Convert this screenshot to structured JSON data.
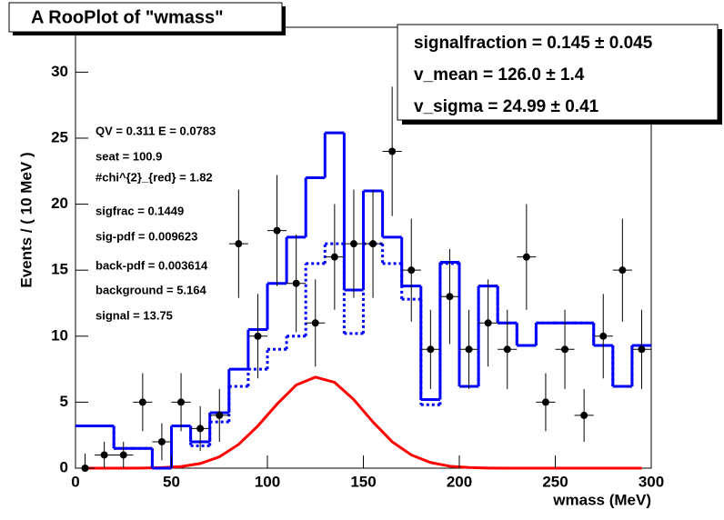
{
  "chart_data": {
    "type": "line",
    "title": "A RooPlot of \"wmass\"",
    "x_label": "wmass (MeV)",
    "y_label": "Events / ( 10 MeV )",
    "xlim": [
      0,
      300
    ],
    "xticks": [
      0,
      50,
      100,
      150,
      200,
      250,
      300
    ],
    "ylim": [
      0,
      33.4
    ],
    "yticks": [
      0,
      5,
      10,
      15,
      20,
      25,
      30
    ],
    "x": [
      5,
      15,
      25,
      35,
      45,
      55,
      65,
      75,
      85,
      95,
      105,
      115,
      125,
      135,
      145,
      155,
      165,
      175,
      185,
      195,
      205,
      215,
      225,
      235,
      245,
      255,
      265,
      275,
      285,
      295
    ],
    "series": [
      {
        "style": "points",
        "color": "#000000",
        "values": [
          0,
          1,
          1,
          5,
          2,
          5,
          3,
          4,
          17,
          10,
          18,
          14,
          11,
          16,
          17,
          17,
          24,
          15,
          9,
          13,
          9,
          11,
          9,
          16,
          5,
          9,
          4,
          10,
          15,
          9
        ],
        "errors": [
          1.1,
          1,
          1,
          2.2,
          1.4,
          2.2,
          1.7,
          2,
          4.1,
          3.2,
          4.2,
          3.7,
          3.3,
          4,
          4.1,
          4.1,
          4.9,
          3.9,
          3,
          3.6,
          3,
          3.3,
          3,
          4,
          2.2,
          3,
          2,
          3.2,
          3.9,
          3
        ]
      },
      {
        "style": "step",
        "color": "#0000ff",
        "values": [
          3.2,
          3.2,
          1.5,
          1.5,
          0,
          3.2,
          2,
          4.2,
          7.5,
          10.5,
          14,
          17.5,
          22,
          25.4,
          13.5,
          21,
          17.5,
          13.8,
          5.2,
          15.6,
          6.2,
          13.8,
          11,
          9.3,
          11,
          11,
          11,
          9.3,
          6.2,
          9.3
        ]
      },
      {
        "style": "dotted-step",
        "color": "#0000ff",
        "values": [
          3.2,
          3.2,
          1.5,
          1.5,
          0,
          3.2,
          1.7,
          3.5,
          6.2,
          7.5,
          9,
          10,
          15.5,
          17,
          10.2,
          17,
          15.5,
          12.8,
          4.8,
          15.5,
          6.2,
          13.8,
          11,
          9.3,
          11,
          11,
          11,
          9.3,
          6.2,
          9.3
        ]
      },
      {
        "style": "curve",
        "color": "#ff0000",
        "values": [
          0,
          0,
          0,
          0.01,
          0.04,
          0.12,
          0.35,
          0.86,
          1.8,
          3.2,
          4.85,
          6.3,
          6.9,
          6.5,
          5.2,
          3.5,
          2,
          1,
          0.43,
          0.15,
          0.05,
          0.01,
          0,
          0,
          0,
          0,
          0,
          0,
          0,
          0
        ]
      }
    ],
    "stats": [
      "signalfraction =  0.145 ± 0.045",
      "v_mean =  126.0 ± 1.4",
      "v_sigma =  24.99 ± 0.41"
    ],
    "annotations": [
      "QV = 0.311 E = 0.0783",
      "seat = 100.9",
      "#chi^{2}_{red} = 1.82",
      "sigfrac = 0.1449",
      "sig-pdf = 0.009623",
      "back-pdf = 0.003614",
      "background = 5.164",
      "signal = 13.75"
    ]
  }
}
